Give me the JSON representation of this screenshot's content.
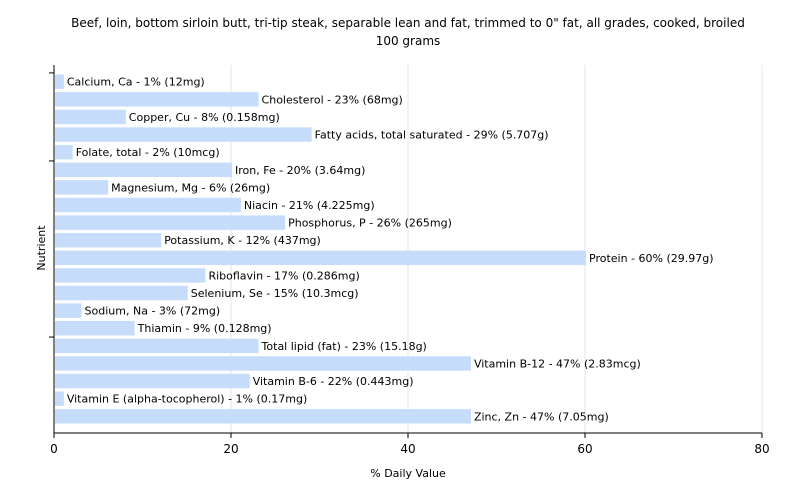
{
  "chart_data": {
    "type": "bar",
    "orientation": "horizontal",
    "title_line1": "Beef, loin, bottom sirloin butt, tri-tip steak, separable lean and fat, trimmed to 0\" fat, all grades, cooked, broiled",
    "title_line2": "100 grams",
    "xlabel": "% Daily Value",
    "ylabel": "Nutrient",
    "xlim": [
      0,
      80
    ],
    "xticks": [
      "0",
      "20",
      "40",
      "60",
      "80"
    ],
    "grid": true,
    "bar_color": "#c6dcfb",
    "categories": [
      "Calcium, Ca",
      "Cholesterol",
      "Copper, Cu",
      "Fatty acids, total saturated",
      "Folate, total",
      "Iron, Fe",
      "Magnesium, Mg",
      "Niacin",
      "Phosphorus, P",
      "Potassium, K",
      "Protein",
      "Riboflavin",
      "Selenium, Se",
      "Sodium, Na",
      "Thiamin",
      "Total lipid (fat)",
      "Vitamin B-12",
      "Vitamin B-6",
      "Vitamin E (alpha-tocopherol)",
      "Zinc, Zn"
    ],
    "values": [
      1,
      23,
      8,
      29,
      2,
      20,
      6,
      21,
      26,
      12,
      60,
      17,
      15,
      3,
      9,
      23,
      47,
      22,
      1,
      47
    ],
    "labels": [
      "Calcium, Ca - 1% (12mg)",
      "Cholesterol - 23% (68mg)",
      "Copper, Cu - 8% (0.158mg)",
      "Fatty acids, total saturated - 29% (5.707g)",
      "Folate, total - 2% (10mcg)",
      "Iron, Fe - 20% (3.64mg)",
      "Magnesium, Mg - 6% (26mg)",
      "Niacin - 21% (4.225mg)",
      "Phosphorus, P - 26% (265mg)",
      "Potassium, K - 12% (437mg)",
      "Protein - 60% (29.97g)",
      "Riboflavin - 17% (0.286mg)",
      "Selenium, Se - 15% (10.3mcg)",
      "Sodium, Na - 3% (72mg)",
      "Thiamin - 9% (0.128mg)",
      "Total lipid (fat) - 23% (15.18g)",
      "Vitamin B-12 - 47% (2.83mcg)",
      "Vitamin B-6 - 22% (0.443mg)",
      "Vitamin E (alpha-tocopherol) - 1% (0.17mg)",
      "Zinc, Zn - 47% (7.05mg)"
    ]
  }
}
